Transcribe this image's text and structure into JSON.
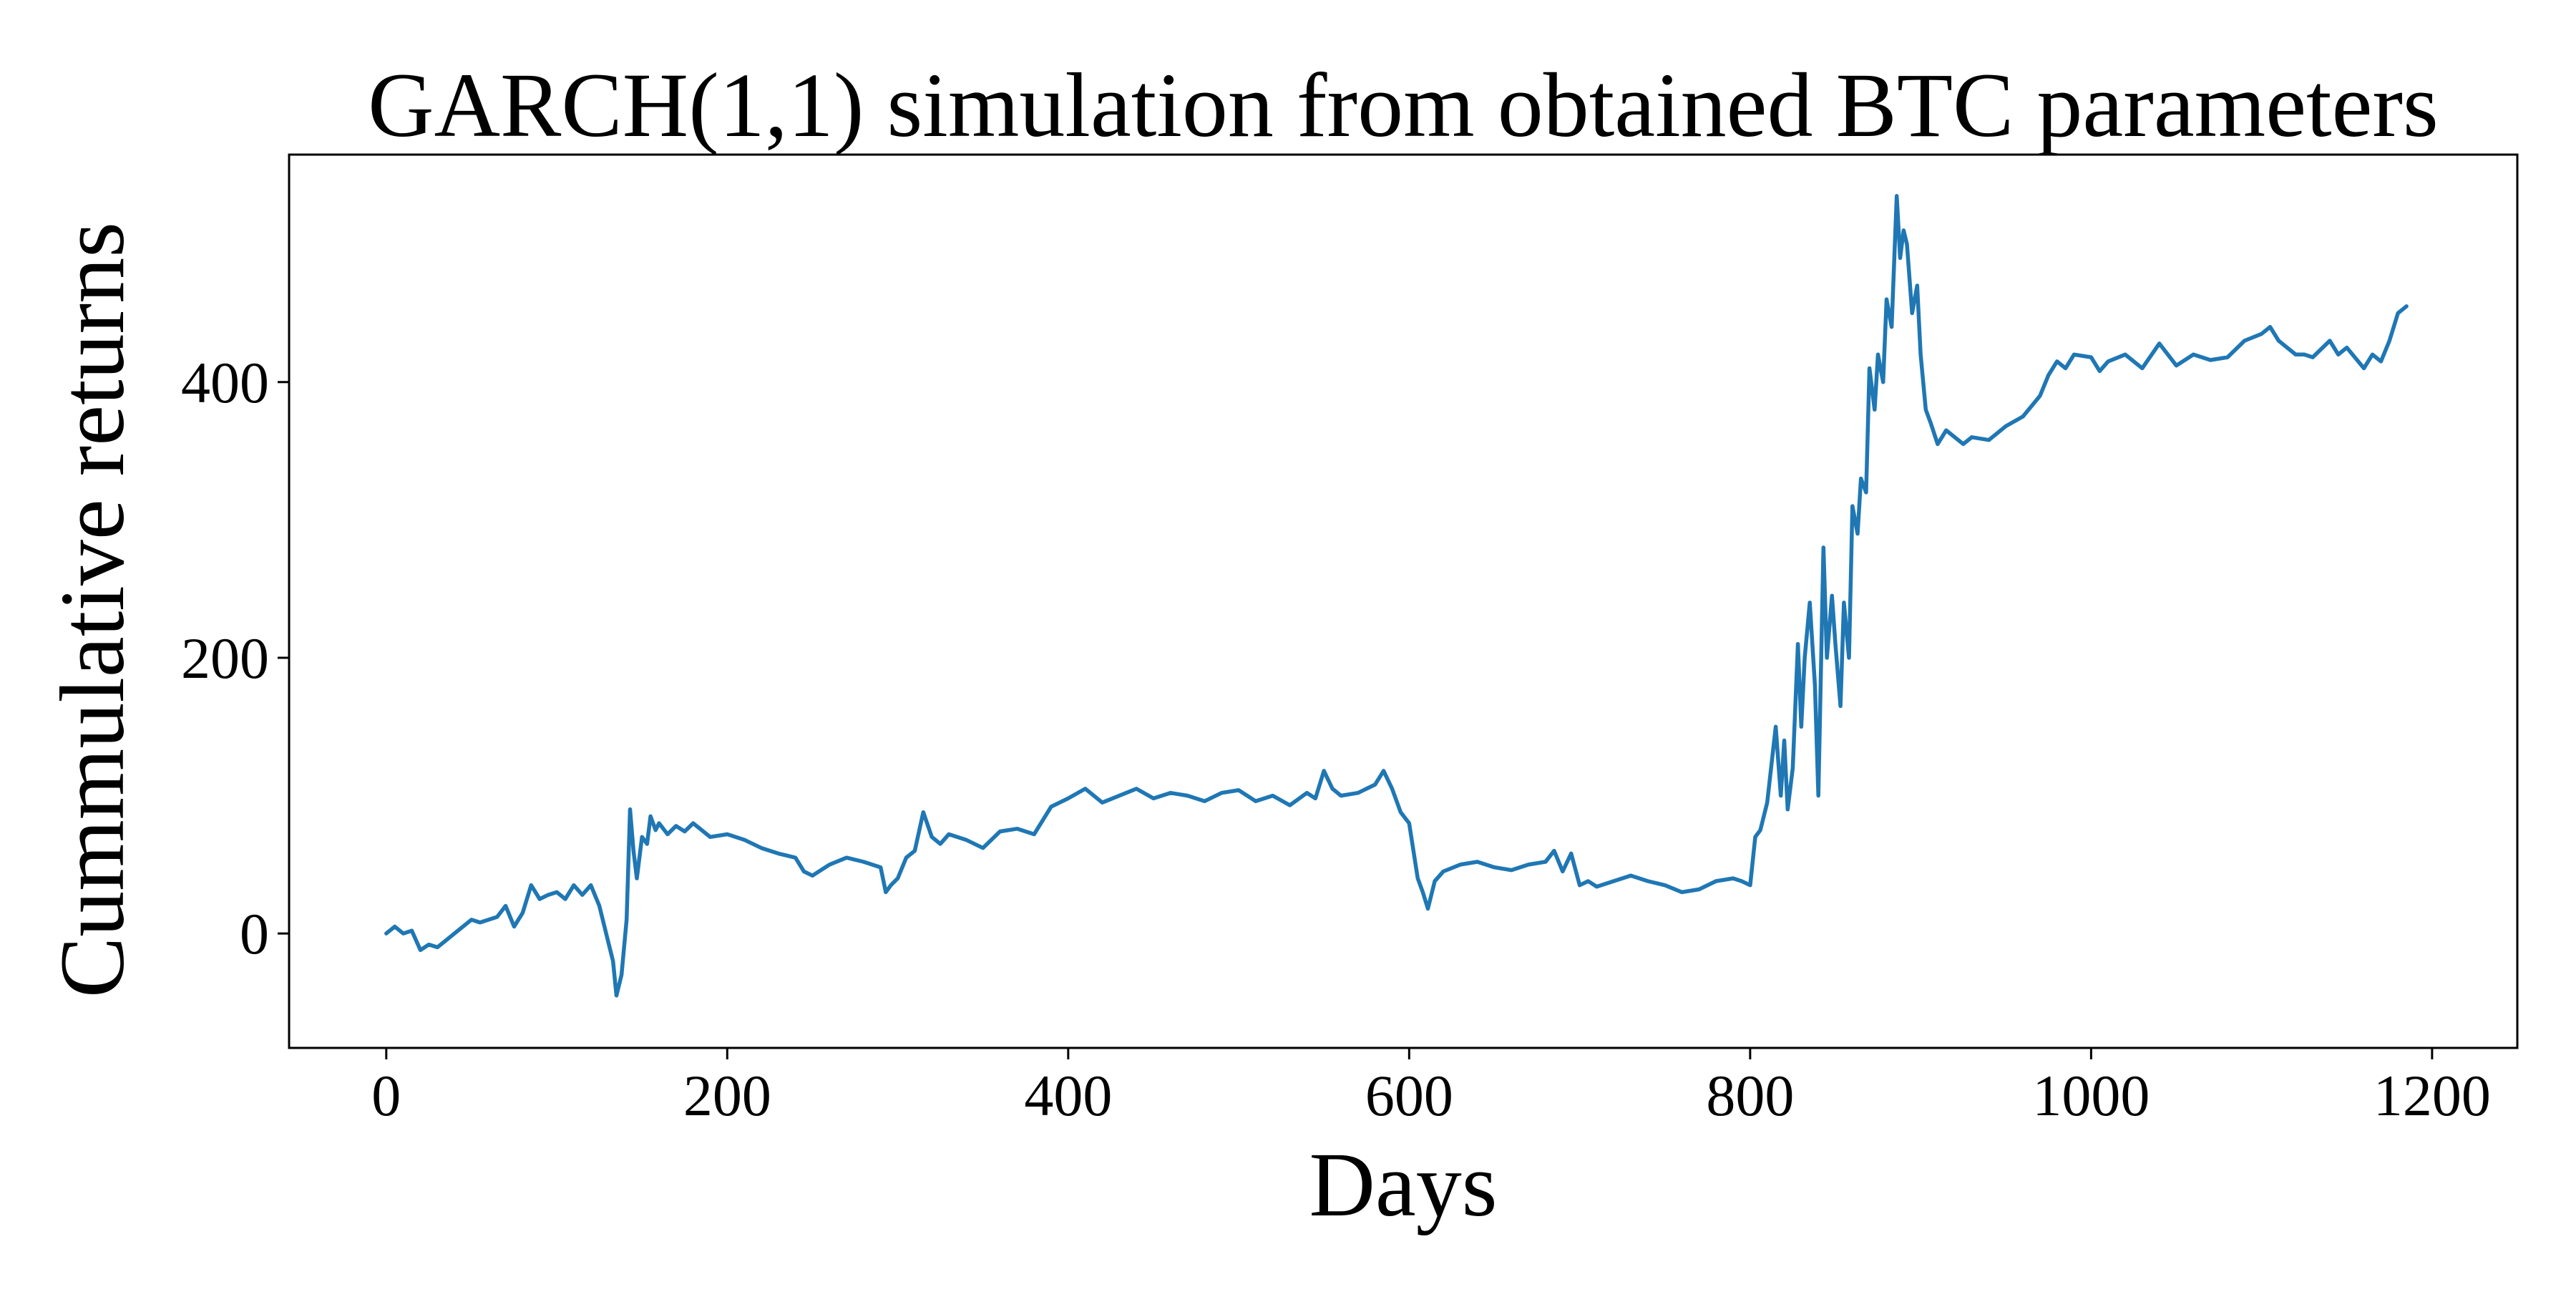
{
  "chart_data": {
    "type": "line",
    "title": "GARCH(1,1) simulation from obtained BTC parameters",
    "xlabel": "Days",
    "ylabel": "Cummulative returns",
    "xlim": [
      -57,
      1250
    ],
    "ylim": [
      -83,
      565
    ],
    "x_ticks": [
      0,
      200,
      400,
      600,
      800,
      1000,
      1200
    ],
    "x_tick_labels": [
      "0",
      "200",
      "400",
      "600",
      "800",
      "1000",
      "1200"
    ],
    "y_ticks": [
      0,
      200,
      400
    ],
    "y_tick_labels": [
      "0",
      "200",
      "400"
    ],
    "grid": false,
    "legend": "none",
    "series": [
      {
        "color": "#1f77b4",
        "x": [
          0,
          5,
          10,
          15,
          20,
          25,
          30,
          35,
          40,
          45,
          50,
          55,
          60,
          65,
          70,
          75,
          80,
          85,
          90,
          95,
          100,
          105,
          110,
          115,
          120,
          125,
          130,
          133,
          135,
          138,
          141,
          143,
          145,
          147,
          150,
          153,
          155,
          158,
          160,
          165,
          170,
          175,
          180,
          185,
          190,
          200,
          210,
          220,
          230,
          240,
          245,
          250,
          260,
          270,
          280,
          290,
          293,
          296,
          300,
          305,
          310,
          315,
          320,
          325,
          330,
          340,
          350,
          360,
          370,
          380,
          390,
          400,
          410,
          420,
          430,
          440,
          450,
          460,
          470,
          480,
          490,
          500,
          510,
          520,
          530,
          540,
          545,
          550,
          555,
          560,
          570,
          580,
          585,
          590,
          595,
          600,
          605,
          608,
          611,
          615,
          620,
          630,
          640,
          650,
          660,
          670,
          680,
          685,
          690,
          695,
          700,
          705,
          710,
          720,
          730,
          740,
          750,
          760,
          770,
          780,
          790,
          795,
          800,
          803,
          806,
          810,
          815,
          818,
          820,
          822,
          825,
          828,
          830,
          832,
          835,
          838,
          840,
          843,
          845,
          848,
          850,
          853,
          855,
          858,
          860,
          863,
          865,
          868,
          870,
          873,
          875,
          878,
          880,
          883,
          886,
          888,
          890,
          892,
          895,
          898,
          900,
          903,
          906,
          910,
          915,
          920,
          925,
          930,
          940,
          950,
          960,
          970,
          975,
          980,
          985,
          990,
          1000,
          1005,
          1010,
          1020,
          1030,
          1040,
          1050,
          1060,
          1070,
          1080,
          1090,
          1100,
          1105,
          1110,
          1120,
          1125,
          1130,
          1140,
          1145,
          1150,
          1160,
          1165,
          1170,
          1175,
          1180,
          1185
        ],
        "y": [
          0,
          5,
          0,
          2,
          -12,
          -8,
          -10,
          -5,
          0,
          5,
          10,
          8,
          10,
          12,
          20,
          5,
          15,
          35,
          25,
          28,
          30,
          25,
          35,
          28,
          35,
          20,
          -5,
          -20,
          -45,
          -30,
          10,
          90,
          60,
          40,
          70,
          65,
          85,
          75,
          80,
          72,
          78,
          74,
          80,
          75,
          70,
          72,
          68,
          62,
          58,
          55,
          45,
          42,
          50,
          55,
          52,
          48,
          30,
          35,
          40,
          55,
          60,
          88,
          70,
          65,
          72,
          68,
          62,
          74,
          76,
          72,
          92,
          98,
          105,
          95,
          100,
          105,
          98,
          102,
          100,
          96,
          102,
          104,
          96,
          100,
          93,
          102,
          98,
          118,
          105,
          100,
          102,
          108,
          118,
          105,
          88,
          80,
          40,
          30,
          18,
          38,
          45,
          50,
          52,
          48,
          46,
          50,
          52,
          60,
          45,
          58,
          35,
          38,
          34,
          38,
          42,
          38,
          35,
          30,
          32,
          38,
          40,
          38,
          35,
          70,
          75,
          95,
          150,
          100,
          140,
          90,
          120,
          210,
          150,
          200,
          240,
          180,
          100,
          280,
          200,
          245,
          210,
          165,
          240,
          200,
          310,
          290,
          330,
          320,
          410,
          380,
          420,
          400,
          460,
          440,
          535,
          490,
          510,
          500,
          450,
          470,
          420,
          380,
          370,
          355,
          365,
          360,
          355,
          360,
          358,
          368,
          375,
          390,
          405,
          415,
          410,
          420,
          418,
          408,
          415,
          420,
          410,
          428,
          412,
          420,
          416,
          418,
          430,
          435,
          440,
          430,
          420,
          420,
          418,
          430,
          420,
          425,
          410,
          420,
          415,
          430,
          450,
          455
        ]
      }
    ]
  }
}
